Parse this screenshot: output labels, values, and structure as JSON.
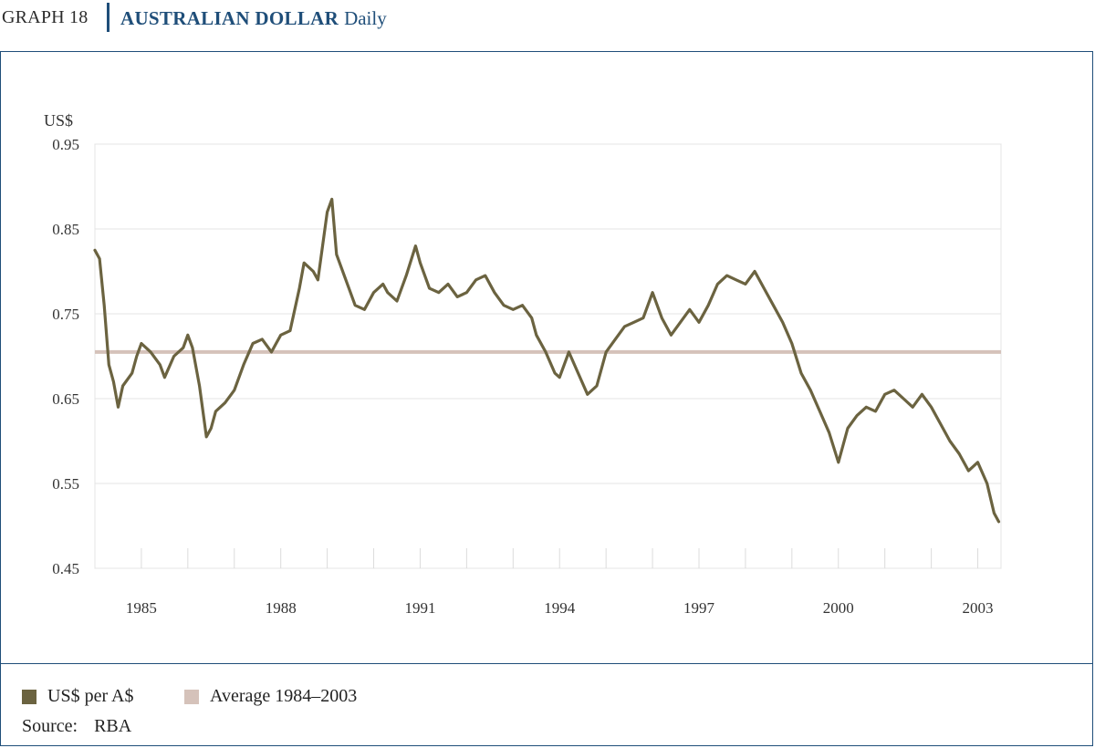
{
  "header": {
    "graph_number": "GRAPH 18",
    "title": "AUSTRALIAN DOLLAR",
    "subtitle": "Daily"
  },
  "legend": {
    "series_label": "US$ per A$",
    "average_label": "Average 1984–2003"
  },
  "source": {
    "label": "Source:",
    "value": "RBA"
  },
  "colors": {
    "series": "#6b6340",
    "average": "#d5c2ba",
    "grid": "#e4e4e4",
    "frame": "#1f4e79",
    "title": "#1f4e79"
  },
  "chart_data": {
    "type": "line",
    "ylabel": "US$",
    "ylim": [
      0.45,
      0.95
    ],
    "yticks": [
      0.95,
      0.85,
      0.75,
      0.65,
      0.55,
      0.45
    ],
    "ytick_labels": [
      "0.95",
      "0.85",
      "0.75",
      "0.65",
      "0.55",
      "0.45"
    ],
    "xlim": [
      1984.0,
      2003.5
    ],
    "xtick_labels": [
      "1985",
      "1988",
      "1991",
      "1994",
      "1997",
      "2000",
      "2003"
    ],
    "xtick_positions": [
      1985.0,
      1988.0,
      1991.0,
      1994.0,
      1997.0,
      2000.0,
      2003.0
    ],
    "minor_ticks": [
      1985,
      1986,
      1987,
      1988,
      1989,
      1990,
      1991,
      1992,
      1993,
      1994,
      1995,
      1996,
      1997,
      1998,
      1999,
      2000,
      2001,
      2002,
      2003
    ],
    "grid": true,
    "legend_position": "bottom",
    "average": {
      "name": "Average 1984–2003",
      "value": 0.705
    },
    "series": [
      {
        "name": "US$ per A$",
        "x": [
          1984.0,
          1984.1,
          1984.2,
          1984.3,
          1984.4,
          1984.5,
          1984.6,
          1984.8,
          1984.9,
          1985.0,
          1985.2,
          1985.4,
          1985.5,
          1985.7,
          1985.9,
          1986.0,
          1986.1,
          1986.25,
          1986.4,
          1986.5,
          1986.6,
          1986.8,
          1987.0,
          1987.2,
          1987.4,
          1987.6,
          1987.8,
          1987.9,
          1988.0,
          1988.2,
          1988.4,
          1988.5,
          1988.7,
          1988.8,
          1988.9,
          1989.0,
          1989.1,
          1989.2,
          1989.4,
          1989.6,
          1989.8,
          1990.0,
          1990.2,
          1990.3,
          1990.5,
          1990.7,
          1990.9,
          1991.0,
          1991.2,
          1991.4,
          1991.6,
          1991.8,
          1992.0,
          1992.2,
          1992.4,
          1992.6,
          1992.8,
          1993.0,
          1993.2,
          1993.4,
          1993.5,
          1993.7,
          1993.9,
          1994.0,
          1994.2,
          1994.4,
          1994.6,
          1994.8,
          1995.0,
          1995.2,
          1995.4,
          1995.6,
          1995.8,
          1996.0,
          1996.2,
          1996.4,
          1996.6,
          1996.8,
          1997.0,
          1997.2,
          1997.4,
          1997.6,
          1997.8,
          1998.0,
          1998.2,
          1998.4,
          1998.6,
          1998.8,
          1999.0,
          1999.2,
          1999.4,
          1999.6,
          1999.8,
          2000.0,
          2000.2,
          2000.4,
          2000.6,
          2000.8,
          2001.0,
          2001.2,
          2001.4,
          2001.6,
          2001.8,
          2002.0,
          2002.2,
          2002.4,
          2002.6,
          2002.8,
          2003.0,
          2003.2,
          2003.35,
          2003.45
        ],
        "y": [
          0.825,
          0.815,
          0.76,
          0.69,
          0.67,
          0.64,
          0.665,
          0.68,
          0.7,
          0.715,
          0.705,
          0.69,
          0.675,
          0.7,
          0.71,
          0.725,
          0.71,
          0.665,
          0.605,
          0.615,
          0.635,
          0.645,
          0.66,
          0.69,
          0.715,
          0.72,
          0.705,
          0.715,
          0.725,
          0.73,
          0.78,
          0.81,
          0.8,
          0.79,
          0.83,
          0.87,
          0.885,
          0.82,
          0.79,
          0.76,
          0.755,
          0.775,
          0.785,
          0.775,
          0.765,
          0.795,
          0.83,
          0.81,
          0.78,
          0.775,
          0.785,
          0.77,
          0.775,
          0.79,
          0.795,
          0.775,
          0.76,
          0.755,
          0.76,
          0.745,
          0.725,
          0.705,
          0.68,
          0.675,
          0.705,
          0.68,
          0.655,
          0.665,
          0.705,
          0.72,
          0.735,
          0.74,
          0.745,
          0.775,
          0.745,
          0.725,
          0.74,
          0.755,
          0.74,
          0.76,
          0.785,
          0.795,
          0.79,
          0.785,
          0.8,
          0.78,
          0.76,
          0.74,
          0.715,
          0.68,
          0.66,
          0.635,
          0.61,
          0.575,
          0.615,
          0.63,
          0.64,
          0.635,
          0.655,
          0.66,
          0.65,
          0.64,
          0.655,
          0.64,
          0.62,
          0.6,
          0.585,
          0.565,
          0.575,
          0.55,
          0.515,
          0.505
        ]
      }
    ]
  }
}
